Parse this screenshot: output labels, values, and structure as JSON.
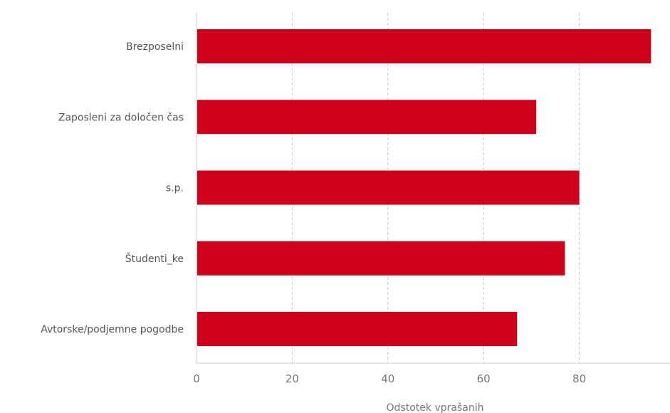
{
  "chart_data": {
    "type": "bar",
    "orientation": "horizontal",
    "title": "",
    "xlabel": "Odstotek vprašanih",
    "ylabel": "",
    "categories": [
      "Brezposelni",
      "Zaposleni za določen čas",
      "s.p.",
      "Študenti_ke",
      "Avtorske/podjemne pogodbe"
    ],
    "values": [
      95,
      71,
      80,
      77,
      67
    ],
    "xlim": [
      0,
      98
    ],
    "xticks": [
      0,
      20,
      40,
      60,
      80
    ],
    "grid": "vertical dashed",
    "legend": "none",
    "bar_color": "#d0021b"
  }
}
